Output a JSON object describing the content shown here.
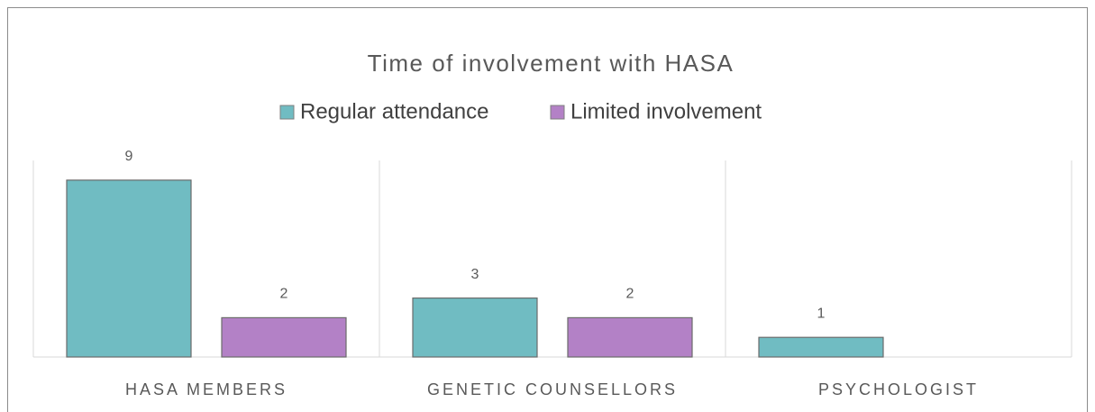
{
  "chart_data": {
    "type": "bar",
    "title": "Time of involvement with HASA",
    "categories": [
      "HASA MEMBERS",
      "GENETIC COUNSELLORS",
      "PSYCHOLOGIST"
    ],
    "series": [
      {
        "name": "Regular attendance",
        "color": "#70bcc2",
        "values": [
          9,
          3,
          1
        ]
      },
      {
        "name": "Limited involvement",
        "color": "#b381c6",
        "values": [
          2,
          2,
          null
        ]
      }
    ],
    "ylim": [
      0,
      10
    ],
    "legend": "top"
  }
}
